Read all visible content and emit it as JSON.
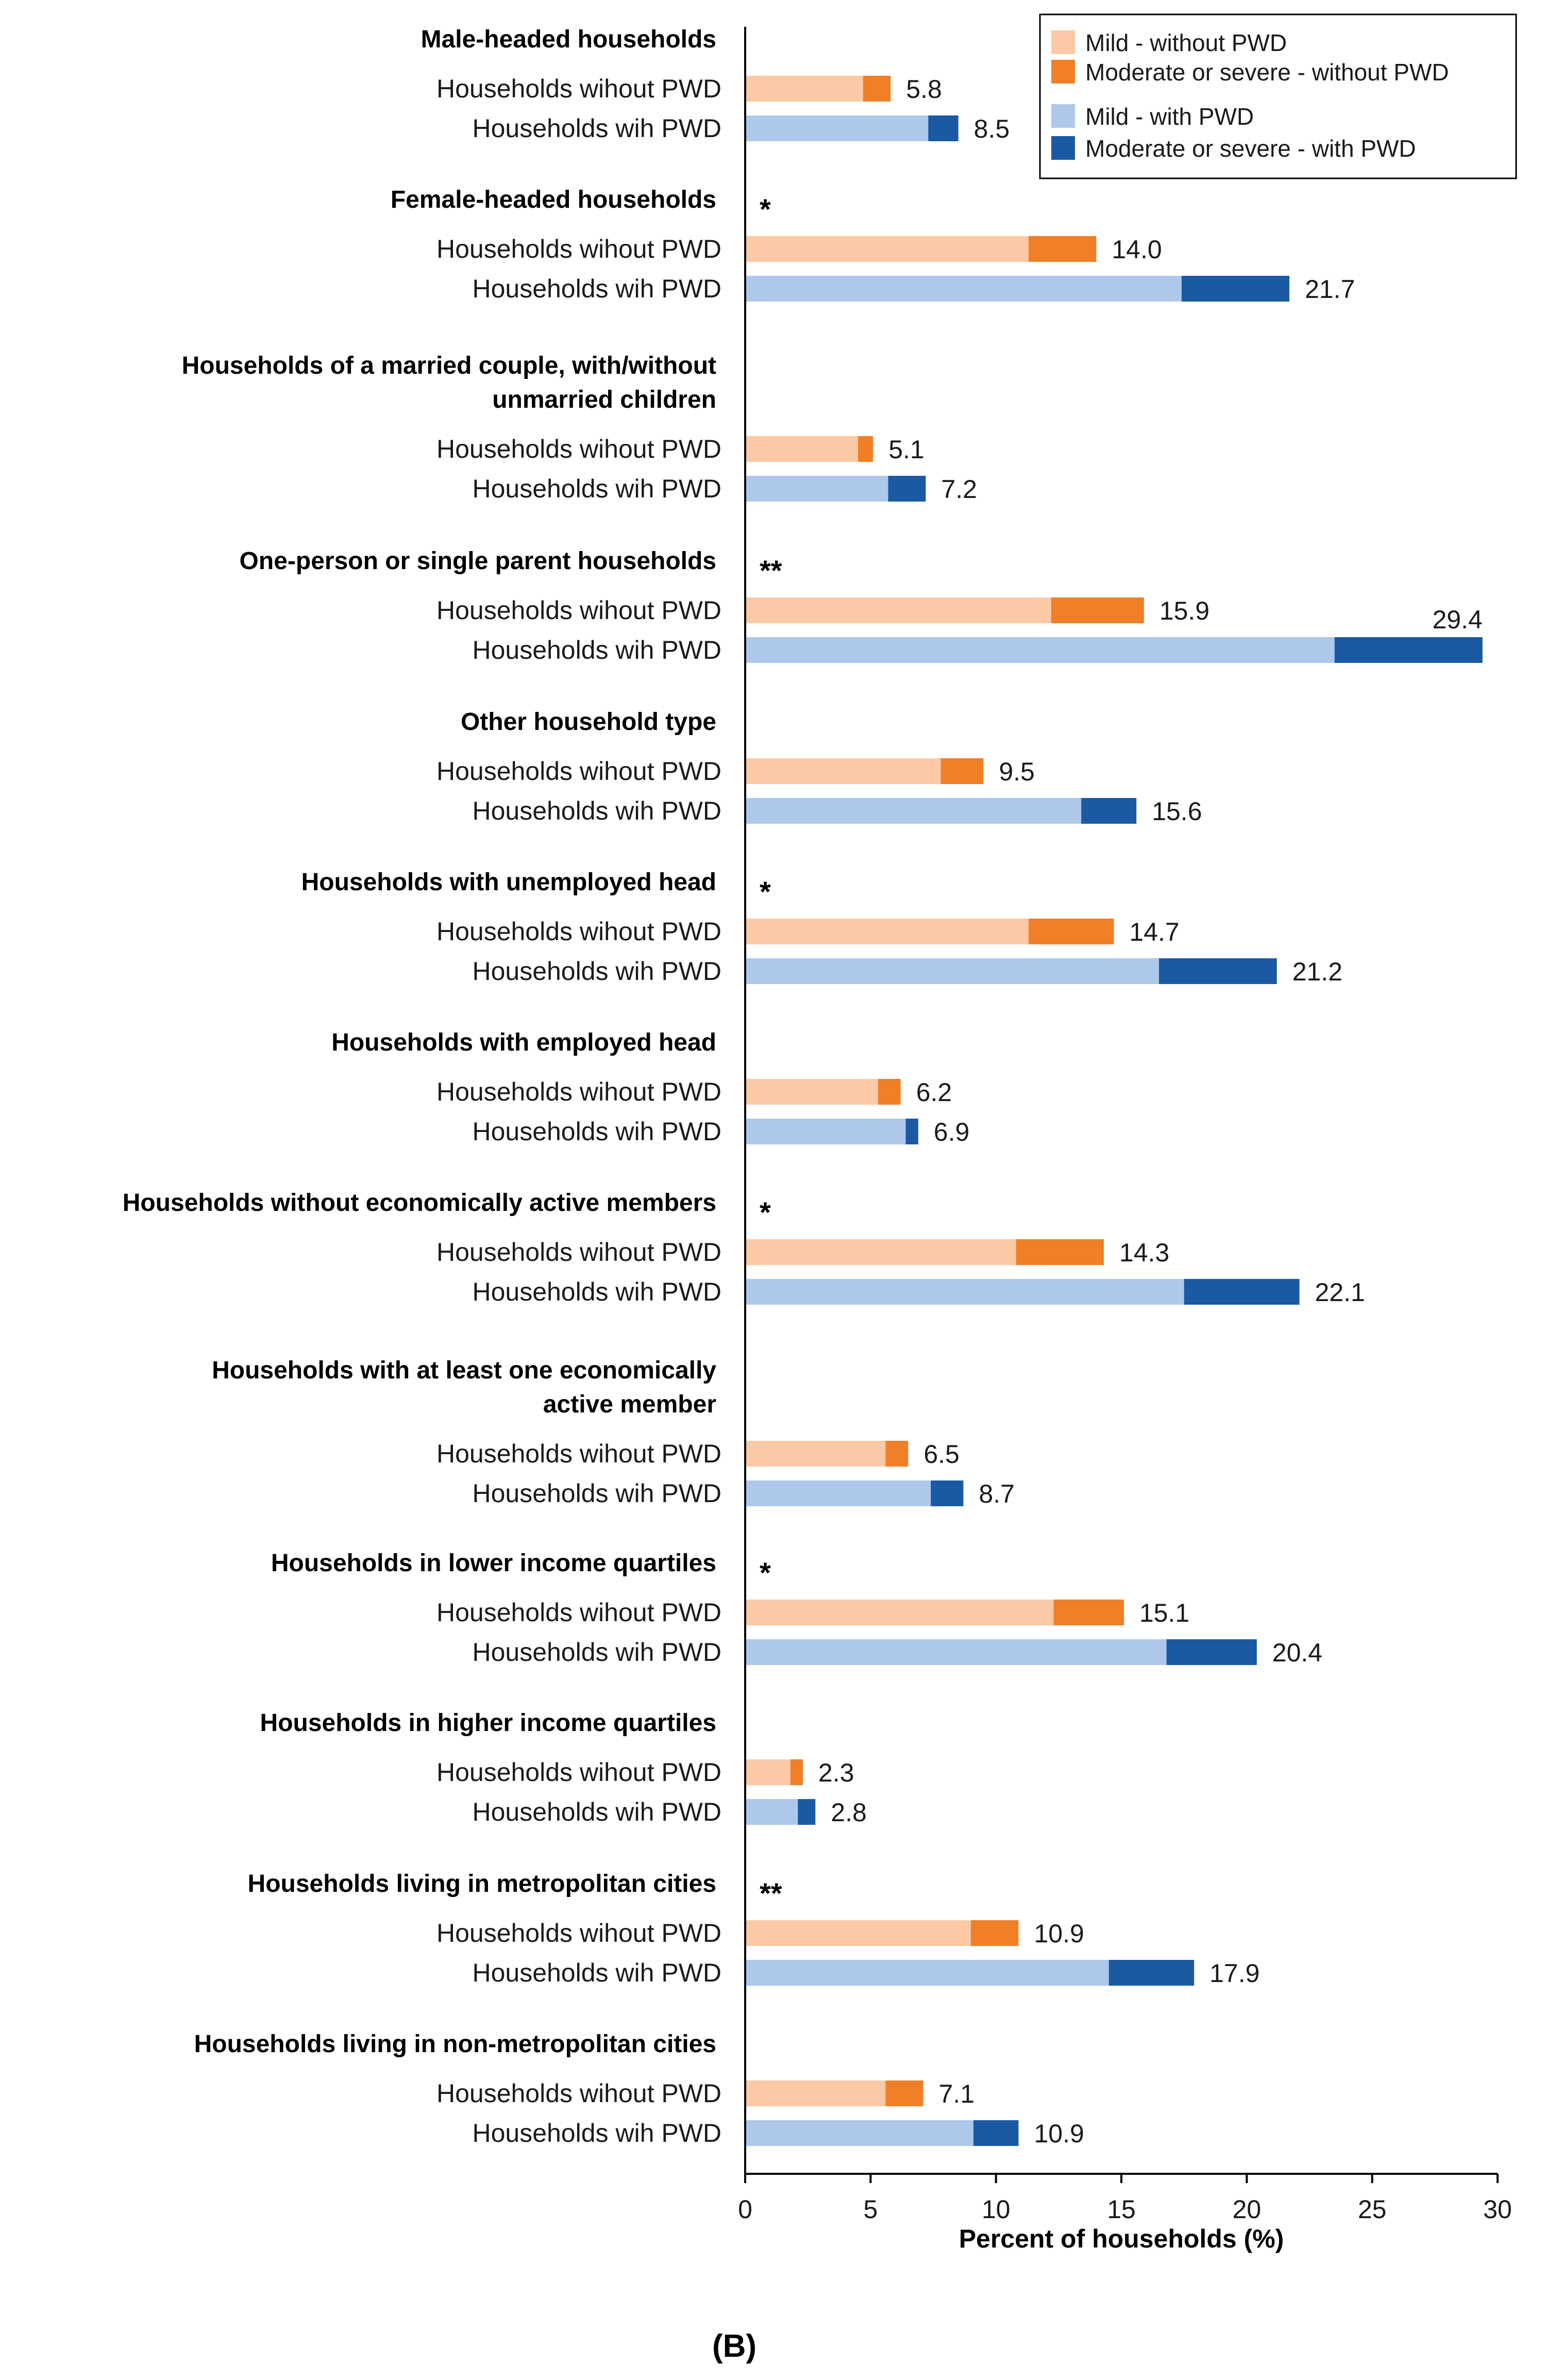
{
  "chart_data": {
    "type": "bar",
    "orientation": "horizontal",
    "stacked": true,
    "xlabel": "Percent of households (%)",
    "xlim": [
      0,
      30
    ],
    "xticks": [
      0,
      5,
      10,
      15,
      20,
      25,
      30
    ],
    "panel_label": "(B)",
    "row_labels": {
      "without": "Households wihout PWD",
      "with": "Households wih PWD"
    },
    "legend": {
      "position": "top-right",
      "entries": [
        {
          "label": "Mild - without PWD",
          "color": "#fbc9a6"
        },
        {
          "label": "Moderate or severe - without PWD",
          "color": "#f07f27"
        },
        {
          "label": "Mild - with PWD",
          "color": "#aec8ec"
        },
        {
          "label": "Moderate or severe - with PWD",
          "color": "#1a5aa3"
        }
      ]
    },
    "groups": [
      {
        "title": [
          "Male-headed households"
        ],
        "sig": "",
        "without": {
          "mild": 4.7,
          "total": 5.8
        },
        "with": {
          "mild": 7.3,
          "total": 8.5
        }
      },
      {
        "title": [
          "Female-headed households"
        ],
        "sig": "*",
        "without": {
          "mild": 11.3,
          "total": 14.0
        },
        "with": {
          "mild": 17.4,
          "total": 21.7
        }
      },
      {
        "title": [
          "Households of a married couple, with/without",
          "unmarried children"
        ],
        "sig": "",
        "without": {
          "mild": 4.5,
          "total": 5.1
        },
        "with": {
          "mild": 5.7,
          "total": 7.2
        }
      },
      {
        "title": [
          "One-person or single parent households"
        ],
        "sig": "**",
        "without": {
          "mild": 12.2,
          "total": 15.9
        },
        "with": {
          "mild": 23.5,
          "total": 29.4
        }
      },
      {
        "title": [
          "Other household type"
        ],
        "sig": "",
        "without": {
          "mild": 7.8,
          "total": 9.5
        },
        "with": {
          "mild": 13.4,
          "total": 15.6
        }
      },
      {
        "title": [
          "Households with unemployed head"
        ],
        "sig": "*",
        "without": {
          "mild": 11.3,
          "total": 14.7
        },
        "with": {
          "mild": 16.5,
          "total": 21.2
        }
      },
      {
        "title": [
          "Households with employed head"
        ],
        "sig": "",
        "without": {
          "mild": 5.3,
          "total": 6.2
        },
        "with": {
          "mild": 6.4,
          "total": 6.9
        }
      },
      {
        "title": [
          "Households without economically active members"
        ],
        "sig": "*",
        "without": {
          "mild": 10.8,
          "total": 14.3
        },
        "with": {
          "mild": 17.5,
          "total": 22.1
        }
      },
      {
        "title": [
          "Households with at least one economically",
          "active member"
        ],
        "sig": "",
        "without": {
          "mild": 5.6,
          "total": 6.5
        },
        "with": {
          "mild": 7.4,
          "total": 8.7
        }
      },
      {
        "title": [
          "Households in lower income quartiles"
        ],
        "sig": "*",
        "without": {
          "mild": 12.3,
          "total": 15.1
        },
        "with": {
          "mild": 16.8,
          "total": 20.4
        }
      },
      {
        "title": [
          "Households in higher income quartiles"
        ],
        "sig": "",
        "without": {
          "mild": 1.8,
          "total": 2.3
        },
        "with": {
          "mild": 2.1,
          "total": 2.8
        }
      },
      {
        "title": [
          "Households living in metropolitan cities"
        ],
        "sig": "**",
        "without": {
          "mild": 9.0,
          "total": 10.9
        },
        "with": {
          "mild": 14.5,
          "total": 17.9
        }
      },
      {
        "title": [
          "Households living in non-metropolitan cities"
        ],
        "sig": "",
        "without": {
          "mild": 5.6,
          "total": 7.1
        },
        "with": {
          "mild": 9.1,
          "total": 10.9
        }
      }
    ]
  }
}
